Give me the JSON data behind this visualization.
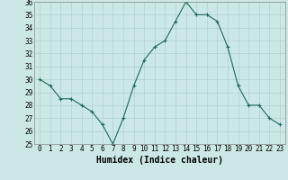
{
  "x": [
    0,
    1,
    2,
    3,
    4,
    5,
    6,
    7,
    8,
    9,
    10,
    11,
    12,
    13,
    14,
    15,
    16,
    17,
    18,
    19,
    20,
    21,
    22,
    23
  ],
  "y": [
    30,
    29.5,
    28.5,
    28.5,
    28,
    27.5,
    26.5,
    25,
    27,
    29.5,
    31.5,
    32.5,
    33,
    34.5,
    36,
    35,
    35,
    34.5,
    32.5,
    29.5,
    28,
    28,
    27,
    26.5
  ],
  "line_color": "#1a6b5a",
  "marker": "+",
  "marker_color": "#1a6b5a",
  "bg_color": "#cce8e6",
  "grid_color": "#b0d0ce",
  "xlabel": "Humidex (Indice chaleur)",
  "ylim": [
    25,
    36
  ],
  "xlim_min": -0.5,
  "xlim_max": 23.5,
  "yticks": [
    25,
    26,
    27,
    28,
    29,
    30,
    31,
    32,
    33,
    34,
    35,
    36
  ],
  "xticks": [
    0,
    1,
    2,
    3,
    4,
    5,
    6,
    7,
    8,
    9,
    10,
    11,
    12,
    13,
    14,
    15,
    16,
    17,
    18,
    19,
    20,
    21,
    22,
    23
  ],
  "tick_label_fontsize": 5.5,
  "xlabel_fontsize": 7.0,
  "xlabel_fontweight": "bold"
}
